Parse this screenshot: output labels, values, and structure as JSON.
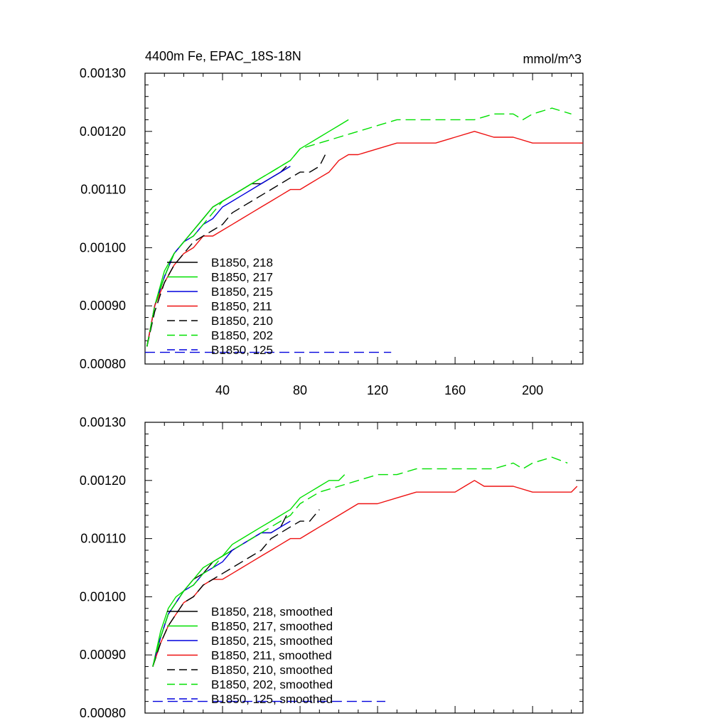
{
  "chart_data": [
    {
      "type": "line",
      "title": "4400m Fe, EPAC_18S-18N",
      "units": "mmol/m^3",
      "xlabel": "",
      "ylabel": "",
      "xlim": [
        0,
        226
      ],
      "ylim": [
        0.0008,
        0.0013
      ],
      "yticks": [
        "0.00080",
        "0.00090",
        "0.00100",
        "0.00110",
        "0.00120",
        "0.00130"
      ],
      "xticks": [
        "40",
        "80",
        "120",
        "160",
        "200"
      ],
      "legend_position": "lower-left",
      "series": [
        {
          "name": "B1850, 218",
          "color": "#000000",
          "dash": "solid",
          "x": [
            1,
            5,
            10,
            15,
            20,
            25,
            30,
            35,
            40,
            45,
            50,
            55,
            60,
            65,
            70,
            73
          ],
          "y": [
            0.00083,
            0.0009,
            0.00095,
            0.00099,
            0.00101,
            0.00103,
            0.00105,
            0.00107,
            0.00108,
            0.00109,
            0.0011,
            0.00111,
            0.00111,
            0.00112,
            0.00113,
            0.00114
          ]
        },
        {
          "name": "B1850, 217",
          "color": "#00e000",
          "dash": "solid",
          "x": [
            1,
            5,
            10,
            15,
            20,
            25,
            30,
            35,
            40,
            45,
            50,
            55,
            60,
            65,
            70,
            75,
            80,
            85,
            90,
            95,
            100,
            105
          ],
          "y": [
            0.00083,
            0.0009,
            0.00096,
            0.00099,
            0.00101,
            0.00103,
            0.00105,
            0.00107,
            0.00108,
            0.00109,
            0.0011,
            0.00111,
            0.00112,
            0.00113,
            0.00114,
            0.00115,
            0.00117,
            0.00118,
            0.00119,
            0.0012,
            0.00121,
            0.00122
          ]
        },
        {
          "name": "B1850, 215",
          "color": "#0000dd",
          "dash": "solid",
          "x": [
            1,
            5,
            10,
            15,
            20,
            25,
            30,
            35,
            40,
            45,
            50,
            55,
            60,
            65,
            70,
            75
          ],
          "y": [
            0.00083,
            0.0009,
            0.00095,
            0.00099,
            0.00101,
            0.00102,
            0.00104,
            0.00105,
            0.00107,
            0.00108,
            0.00109,
            0.0011,
            0.00111,
            0.00112,
            0.00113,
            0.00114
          ]
        },
        {
          "name": "B1850, 211",
          "color": "#ee1111",
          "dash": "solid",
          "x": [
            1,
            5,
            10,
            15,
            20,
            25,
            30,
            35,
            40,
            45,
            50,
            55,
            60,
            65,
            70,
            75,
            80,
            85,
            90,
            95,
            100,
            105,
            110,
            120,
            130,
            140,
            150,
            160,
            170,
            180,
            190,
            200,
            210,
            220,
            226
          ],
          "y": [
            0.00083,
            0.0009,
            0.00094,
            0.00097,
            0.00099,
            0.001,
            0.00102,
            0.00102,
            0.00103,
            0.00104,
            0.00105,
            0.00106,
            0.00107,
            0.00108,
            0.00109,
            0.0011,
            0.0011,
            0.00111,
            0.00112,
            0.00113,
            0.00115,
            0.00116,
            0.00116,
            0.00117,
            0.00118,
            0.00118,
            0.00118,
            0.00119,
            0.0012,
            0.00119,
            0.00119,
            0.00118,
            0.00118,
            0.00118,
            0.00118
          ]
        },
        {
          "name": "B1850, 210",
          "color": "#000000",
          "dash": "dashed",
          "x": [
            1,
            5,
            10,
            15,
            20,
            25,
            30,
            35,
            40,
            45,
            50,
            55,
            60,
            65,
            70,
            75,
            80,
            85,
            90,
            93
          ],
          "y": [
            0.00083,
            0.00089,
            0.00094,
            0.00097,
            0.00099,
            0.00101,
            0.00102,
            0.00103,
            0.00104,
            0.00106,
            0.00107,
            0.00108,
            0.00109,
            0.0011,
            0.00111,
            0.00112,
            0.00113,
            0.00113,
            0.00114,
            0.00116
          ]
        },
        {
          "name": "B1850, 202",
          "color": "#00e000",
          "dash": "dashed",
          "x": [
            1,
            5,
            10,
            15,
            20,
            25,
            30,
            35,
            40,
            45,
            50,
            55,
            60,
            65,
            70,
            75,
            80,
            90,
            100,
            110,
            120,
            130,
            140,
            150,
            160,
            170,
            180,
            190,
            195,
            200,
            210,
            220
          ],
          "y": [
            0.00083,
            0.0009,
            0.00095,
            0.00099,
            0.00101,
            0.00102,
            0.00104,
            0.00106,
            0.00108,
            0.00109,
            0.0011,
            0.00111,
            0.00112,
            0.00113,
            0.00114,
            0.00115,
            0.00117,
            0.00118,
            0.00119,
            0.0012,
            0.00121,
            0.00122,
            0.00122,
            0.00122,
            0.00122,
            0.00122,
            0.00123,
            0.00123,
            0.00122,
            0.00123,
            0.00124,
            0.00123
          ]
        },
        {
          "name": "B1850, 125",
          "color": "#0000dd",
          "dash": "dashed",
          "x": [
            0,
            127
          ],
          "y": [
            0.00082,
            0.00082
          ]
        }
      ]
    },
    {
      "type": "line",
      "title": "",
      "xlabel": "",
      "ylabel": "",
      "xlim": [
        0,
        226
      ],
      "ylim": [
        0.0008,
        0.0013
      ],
      "yticks": [
        "0.00080",
        "0.00090",
        "0.00100",
        "0.00110",
        "0.00120",
        "0.00130"
      ],
      "legend_position": "lower-left",
      "series": [
        {
          "name": "B1850, 218, smoothed",
          "color": "#000000",
          "dash": "solid",
          "x": [
            4,
            8,
            12,
            16,
            20,
            25,
            30,
            35,
            40,
            45,
            50,
            55,
            60,
            65,
            70,
            73
          ],
          "y": [
            0.00088,
            0.00093,
            0.00097,
            0.00099,
            0.00101,
            0.00103,
            0.00104,
            0.00106,
            0.00107,
            0.00108,
            0.00109,
            0.0011,
            0.00111,
            0.00111,
            0.00112,
            0.00114
          ]
        },
        {
          "name": "B1850, 217, smoothed",
          "color": "#00e000",
          "dash": "solid",
          "x": [
            4,
            8,
            12,
            16,
            20,
            25,
            30,
            35,
            40,
            45,
            50,
            55,
            60,
            65,
            70,
            75,
            80,
            85,
            90,
            95,
            100,
            103
          ],
          "y": [
            0.00088,
            0.00094,
            0.00098,
            0.001,
            0.00101,
            0.00103,
            0.00105,
            0.00106,
            0.00107,
            0.00109,
            0.0011,
            0.00111,
            0.00112,
            0.00113,
            0.00114,
            0.00115,
            0.00117,
            0.00118,
            0.00119,
            0.0012,
            0.0012,
            0.00121
          ]
        },
        {
          "name": "B1850, 215, smoothed",
          "color": "#0000dd",
          "dash": "solid",
          "x": [
            4,
            8,
            12,
            16,
            20,
            25,
            30,
            35,
            40,
            45,
            50,
            55,
            60,
            65,
            70,
            75
          ],
          "y": [
            0.00088,
            0.00093,
            0.00097,
            0.00099,
            0.00101,
            0.00102,
            0.00104,
            0.00105,
            0.00106,
            0.00108,
            0.00109,
            0.0011,
            0.00111,
            0.00111,
            0.00112,
            0.00113
          ]
        },
        {
          "name": "B1850, 211, smoothed",
          "color": "#ee1111",
          "dash": "solid",
          "x": [
            4,
            8,
            12,
            16,
            20,
            25,
            30,
            35,
            40,
            45,
            50,
            55,
            60,
            65,
            70,
            75,
            80,
            85,
            90,
            95,
            100,
            110,
            120,
            130,
            140,
            150,
            160,
            165,
            170,
            175,
            180,
            190,
            200,
            210,
            220,
            223
          ],
          "y": [
            0.00088,
            0.00092,
            0.00095,
            0.00097,
            0.00099,
            0.001,
            0.00102,
            0.00103,
            0.00103,
            0.00104,
            0.00105,
            0.00106,
            0.00107,
            0.00108,
            0.00109,
            0.0011,
            0.0011,
            0.00111,
            0.00112,
            0.00113,
            0.00114,
            0.00116,
            0.00116,
            0.00117,
            0.00118,
            0.00118,
            0.00118,
            0.00119,
            0.0012,
            0.00119,
            0.00119,
            0.00119,
            0.00118,
            0.00118,
            0.00118,
            0.00119
          ]
        },
        {
          "name": "B1850, 210, smoothed",
          "color": "#000000",
          "dash": "dashed",
          "x": [
            4,
            8,
            12,
            16,
            20,
            25,
            30,
            35,
            40,
            45,
            50,
            55,
            60,
            65,
            70,
            75,
            80,
            85,
            90
          ],
          "y": [
            0.00088,
            0.00092,
            0.00095,
            0.00097,
            0.00099,
            0.001,
            0.00102,
            0.00103,
            0.00104,
            0.00105,
            0.00106,
            0.00107,
            0.00108,
            0.0011,
            0.00111,
            0.00112,
            0.00113,
            0.00113,
            0.00115
          ]
        },
        {
          "name": "B1850, 202, smoothed",
          "color": "#00e000",
          "dash": "dashed",
          "x": [
            4,
            8,
            12,
            16,
            20,
            25,
            30,
            35,
            40,
            45,
            50,
            55,
            60,
            65,
            70,
            75,
            80,
            90,
            100,
            110,
            120,
            130,
            140,
            150,
            160,
            170,
            180,
            190,
            195,
            200,
            210,
            218
          ],
          "y": [
            0.00088,
            0.00093,
            0.00097,
            0.00099,
            0.00101,
            0.00102,
            0.00104,
            0.00105,
            0.00107,
            0.00108,
            0.00109,
            0.0011,
            0.00111,
            0.00112,
            0.00113,
            0.00114,
            0.00116,
            0.00118,
            0.00119,
            0.0012,
            0.00121,
            0.00121,
            0.00122,
            0.00122,
            0.00122,
            0.00122,
            0.00122,
            0.00123,
            0.00122,
            0.00123,
            0.00124,
            0.00123
          ]
        },
        {
          "name": "B1850, 125, smoothed",
          "color": "#0000dd",
          "dash": "dashed",
          "x": [
            4,
            124
          ],
          "y": [
            0.00082,
            0.00082
          ]
        }
      ]
    }
  ]
}
